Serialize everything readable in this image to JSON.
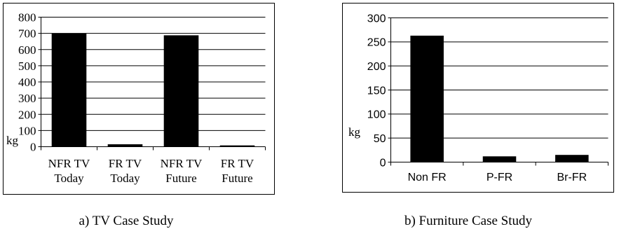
{
  "chart_data": [
    {
      "type": "bar",
      "categories": [
        "NFR TV Today",
        "FR TV Today",
        "NFR TV Future",
        "FR TV Future"
      ],
      "category_lines": [
        [
          "NFR TV",
          "Today"
        ],
        [
          "FR TV",
          "Today"
        ],
        [
          "NFR TV",
          "Future"
        ],
        [
          "FR TV",
          "Future"
        ]
      ],
      "values": [
        700,
        15,
        688,
        8
      ],
      "yticks": [
        0,
        100,
        200,
        300,
        400,
        500,
        600,
        700,
        800
      ],
      "ylim": [
        0,
        800
      ],
      "ylabel": "kg",
      "xlabel": "",
      "title": "",
      "grid": true,
      "caption": "a) TV Case Study"
    },
    {
      "type": "bar",
      "categories": [
        "Non FR",
        "P-FR",
        "Br-FR"
      ],
      "category_lines": [
        [
          "Non FR"
        ],
        [
          "P-FR"
        ],
        [
          "Br-FR"
        ]
      ],
      "values": [
        263,
        12,
        15
      ],
      "yticks": [
        0,
        50,
        100,
        150,
        200,
        250,
        300
      ],
      "ylim": [
        0,
        300
      ],
      "ylabel": "kg",
      "xlabel": "",
      "title": "",
      "grid": true,
      "caption": "b) Furniture Case Study"
    }
  ]
}
